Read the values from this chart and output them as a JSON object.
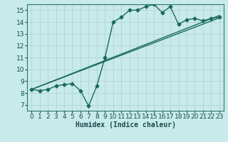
{
  "xlabel": "Humidex (Indice chaleur)",
  "bg_color": "#c8eaea",
  "grid_color": "#b0d0d0",
  "line_color": "#1a6b5a",
  "xlim": [
    -0.5,
    23.5
  ],
  "ylim": [
    6.5,
    15.5
  ],
  "xticks": [
    0,
    1,
    2,
    3,
    4,
    5,
    6,
    7,
    8,
    9,
    10,
    11,
    12,
    13,
    14,
    15,
    16,
    17,
    18,
    19,
    20,
    21,
    22,
    23
  ],
  "yticks": [
    7,
    8,
    9,
    10,
    11,
    12,
    13,
    14,
    15
  ],
  "series1_x": [
    0,
    1,
    2,
    3,
    4,
    5,
    6,
    7,
    8,
    9,
    10,
    11,
    12,
    13,
    14,
    15,
    16,
    17,
    18,
    19,
    20,
    21,
    22,
    23
  ],
  "series1_y": [
    8.3,
    8.2,
    8.3,
    8.6,
    8.7,
    8.8,
    8.2,
    6.9,
    8.6,
    11.0,
    14.0,
    14.4,
    15.0,
    15.0,
    15.3,
    15.5,
    14.8,
    15.3,
    13.8,
    14.2,
    14.3,
    14.1,
    14.3,
    14.4
  ],
  "series2_x": [
    0,
    23
  ],
  "series2_y": [
    8.3,
    14.35
  ],
  "series3_x": [
    0,
    23
  ],
  "series3_y": [
    8.3,
    14.55
  ],
  "marker_size": 2.5,
  "line_width": 1.0,
  "font_size_label": 7,
  "font_size_tick": 6.5
}
